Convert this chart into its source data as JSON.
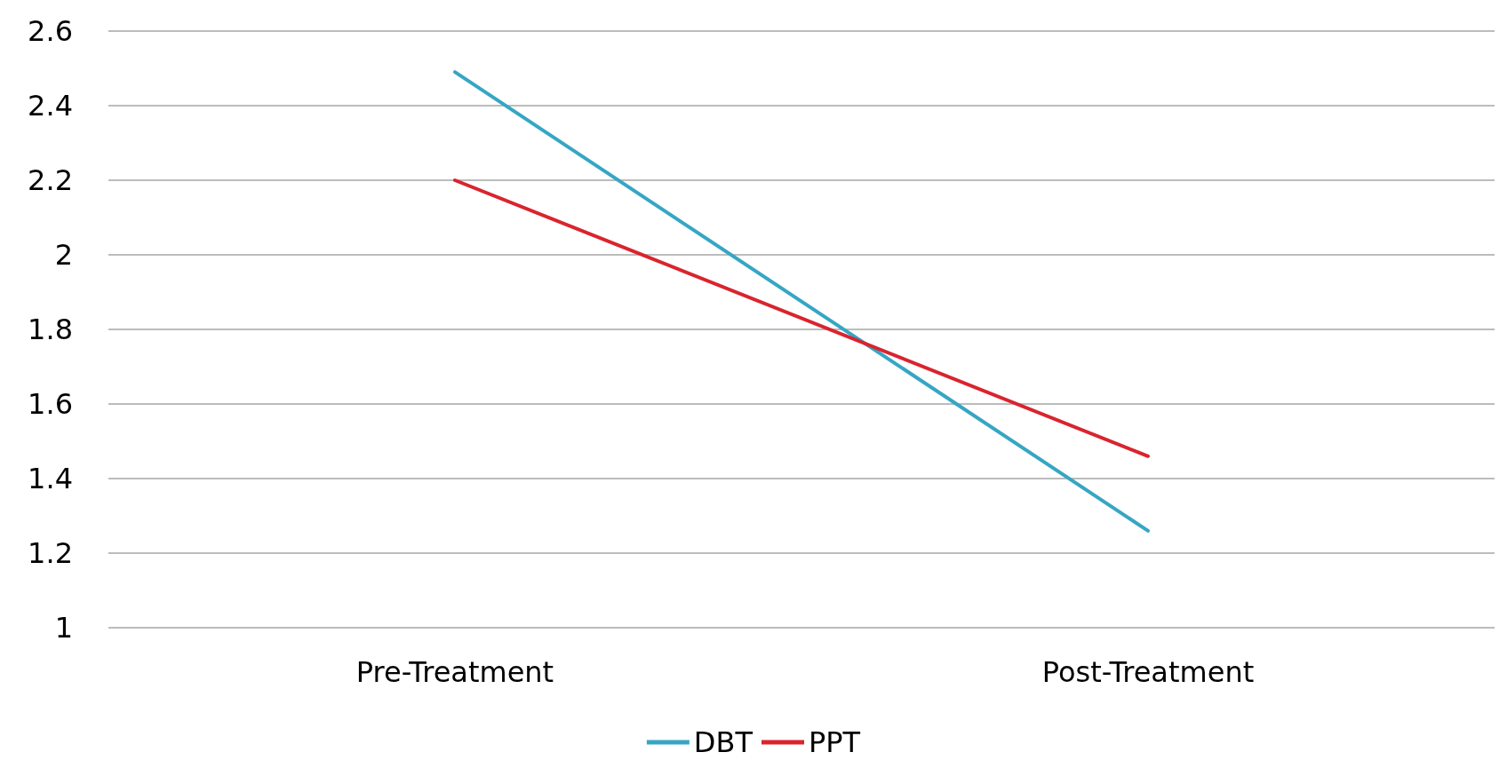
{
  "chart_data": {
    "type": "line",
    "categories": [
      "Pre-Treatment",
      "Post-Treatment"
    ],
    "series": [
      {
        "name": "DBT",
        "color": "#36a6c4",
        "values": [
          2.49,
          1.26
        ]
      },
      {
        "name": "PPT",
        "color": "#d9242e",
        "values": [
          2.2,
          1.46
        ]
      }
    ],
    "ylim": [
      1,
      2.6
    ],
    "yticks": [
      1,
      1.2,
      1.4,
      1.6,
      1.8,
      2,
      2.2,
      2.4,
      2.6
    ],
    "grid": "y",
    "legend": "bottom",
    "marker": "none",
    "line_style": "solid"
  }
}
